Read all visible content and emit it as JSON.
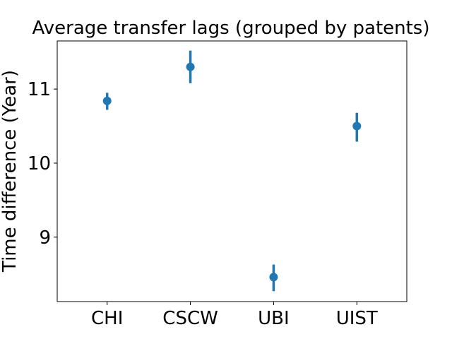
{
  "chart_data": {
    "type": "scatter",
    "title": "Average transfer lags (grouped by patents)",
    "xlabel": "",
    "ylabel": "Time difference (Year)",
    "categories": [
      "CHI",
      "CSCW",
      "UBI",
      "UIST"
    ],
    "series": [
      {
        "values": [
          10.84,
          11.3,
          8.46,
          10.5
        ],
        "error_low": [
          10.72,
          11.08,
          8.27,
          10.29
        ],
        "error_high": [
          10.95,
          11.52,
          8.63,
          10.68
        ]
      }
    ],
    "ylim": [
      8.13,
      11.65
    ],
    "yticks": [
      9,
      10,
      11
    ],
    "grid": false,
    "color": "#1f77b4"
  }
}
